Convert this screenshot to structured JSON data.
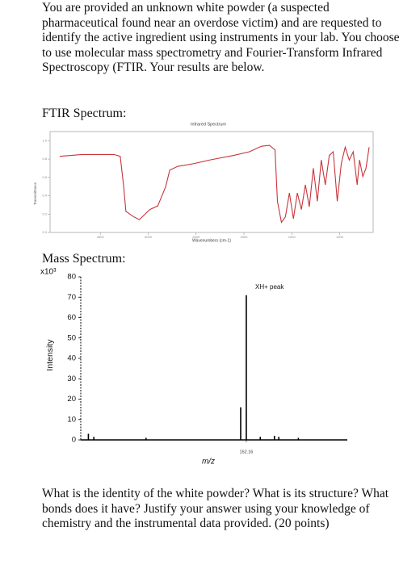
{
  "intro": "You are provided an unknown white powder (a suspected pharmaceutical found near an overdose victim) and are requested to identify the active ingredient using instruments in your lab. You choose to use molecular mass spectrometry and Fourier-Transform Infrared Spectroscopy (FTIR. Your results are below.",
  "ftir_heading": "FTIR Spectrum:",
  "mass_heading": "Mass Spectrum:",
  "question": "What is the identity of the white powder? What is its structure? What bonds does it have? Justify your answer using your knowledge of chemistry and the instrumental data provided. (20 points)",
  "chart_data": [
    {
      "type": "line",
      "title": "Infrared Spectrum",
      "x_label": "Wavenumbers (cm-1)",
      "y_label": "Transmittance",
      "color": "#c8343a",
      "x": [
        3925,
        3692,
        3358,
        3292,
        3258,
        3233,
        3150,
        3092,
        3042,
        2983,
        2900,
        2817,
        2775,
        2692,
        2525,
        2358,
        2108,
        1942,
        1817,
        1733,
        1675,
        1650,
        1608,
        1567,
        1525,
        1483,
        1442,
        1400,
        1358,
        1317,
        1275,
        1233,
        1192,
        1150,
        1108,
        1067,
        1025,
        983,
        942,
        900,
        858,
        817,
        792,
        758,
        725,
        692
      ],
      "values": [
        0.83,
        0.85,
        0.85,
        0.83,
        0.52,
        0.23,
        0.17,
        0.14,
        0.19,
        0.25,
        0.29,
        0.5,
        0.68,
        0.72,
        0.75,
        0.79,
        0.84,
        0.88,
        0.94,
        0.95,
        0.9,
        0.34,
        0.11,
        0.17,
        0.43,
        0.15,
        0.43,
        0.25,
        0.52,
        0.28,
        0.7,
        0.34,
        0.79,
        0.52,
        0.84,
        0.88,
        0.34,
        0.75,
        0.93,
        0.79,
        0.88,
        0.52,
        0.79,
        0.61,
        0.7,
        0.93
      ],
      "xlim": [
        4025,
        650
      ],
      "xticks": [
        3500,
        3000,
        2500,
        2000,
        1500,
        1000
      ],
      "ylim": [
        0,
        1.1
      ],
      "yticks": [
        {
          "value": 0,
          "label": "0.0"
        },
        {
          "value": 0.2,
          "label": "0.2"
        },
        {
          "value": 0.4,
          "label": "0.4"
        },
        {
          "value": 0.6,
          "label": "0.6"
        },
        {
          "value": 0.8,
          "label": "0.8"
        },
        {
          "value": 1,
          "label": "1.0"
        }
      ]
    },
    {
      "type": "stick",
      "x_label": "m/z",
      "y_label": "Intensity",
      "y_multiplier": "x10³",
      "annotation": "XH+ peak",
      "color": "#000000",
      "x": [
        7,
        12,
        60,
        147,
        152.16,
        165,
        178,
        182,
        200
      ],
      "values": [
        3,
        1.5,
        1,
        16,
        71,
        1.5,
        2,
        1.5,
        1
      ],
      "xlim": [
        0,
        245
      ],
      "xticks": [
        152.16
      ],
      "ylim": [
        0,
        80
      ],
      "yticks": [
        0,
        10,
        20,
        30,
        40,
        50,
        60,
        70,
        80
      ]
    }
  ]
}
